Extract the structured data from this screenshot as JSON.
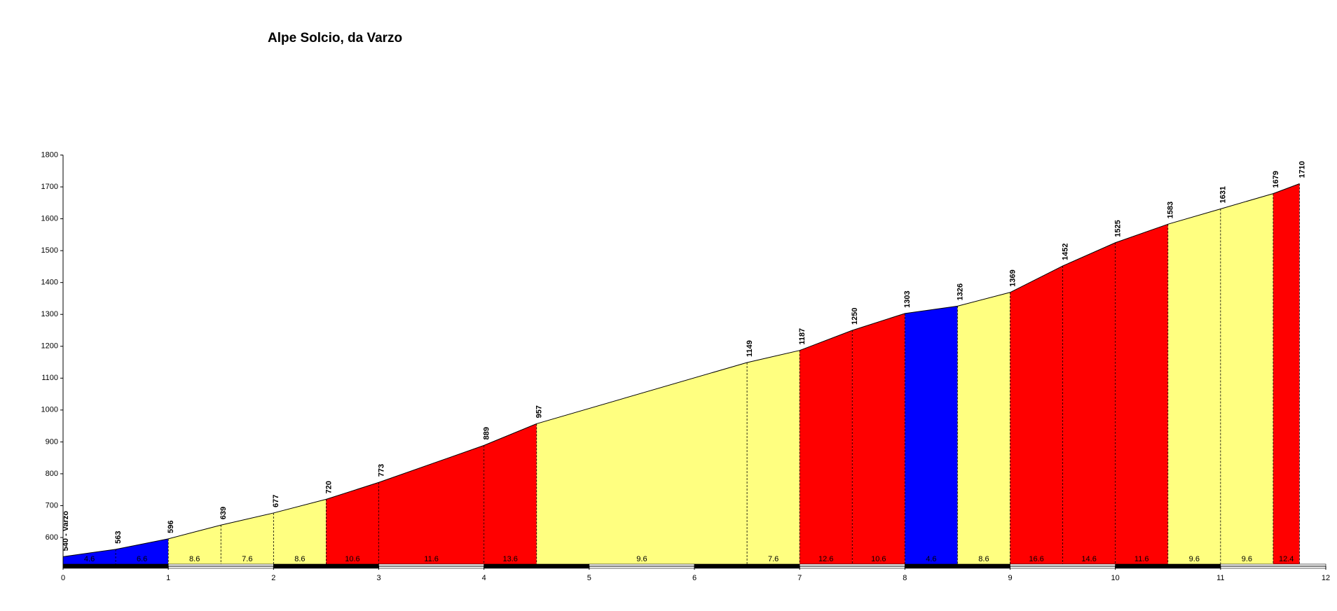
{
  "chart_data": {
    "type": "elevation-profile",
    "title": "Alpe Solcio, da Varzo",
    "x": [
      0,
      0.5,
      1,
      1.5,
      2,
      2.5,
      3,
      4,
      4.5,
      6.5,
      7,
      7.5,
      8,
      8.5,
      9,
      9.5,
      10,
      10.5,
      11,
      11.5,
      11.75
    ],
    "values": [
      540,
      563,
      596,
      639,
      677,
      720,
      773,
      889,
      957,
      1149,
      1187,
      1250,
      1303,
      1326,
      1369,
      1452,
      1525,
      1583,
      1631,
      1679,
      1710
    ],
    "value_labels": [
      "540 - Varzo",
      "563",
      "596",
      "639",
      "677",
      "720",
      "773",
      "889",
      "957",
      "1149",
      "1187",
      "1250",
      "1303",
      "1326",
      "1369",
      "1452",
      "1525",
      "1583",
      "1631",
      "1679",
      "1710"
    ],
    "segments": [
      {
        "grade": 4.6,
        "color": "#0000ff"
      },
      {
        "grade": 6.6,
        "color": "#0000ff"
      },
      {
        "grade": 8.6,
        "color": "#ffff80"
      },
      {
        "grade": 7.6,
        "color": "#ffff80"
      },
      {
        "grade": 8.6,
        "color": "#ffff80"
      },
      {
        "grade": 10.6,
        "color": "#ff0000"
      },
      {
        "grade": 11.6,
        "color": "#ff0000"
      },
      {
        "grade": 13.6,
        "color": "#ff0000"
      },
      {
        "grade": 9.6,
        "color": "#ffff80"
      },
      {
        "grade": 7.6,
        "color": "#ffff80"
      },
      {
        "grade": 12.6,
        "color": "#ff0000"
      },
      {
        "grade": 10.6,
        "color": "#ff0000"
      },
      {
        "grade": 4.6,
        "color": "#0000ff"
      },
      {
        "grade": 8.6,
        "color": "#ffff80"
      },
      {
        "grade": 16.6,
        "color": "#ff0000"
      },
      {
        "grade": 14.6,
        "color": "#ff0000"
      },
      {
        "grade": 11.6,
        "color": "#ff0000"
      },
      {
        "grade": 9.6,
        "color": "#ffff80"
      },
      {
        "grade": 9.6,
        "color": "#ffff80"
      },
      {
        "grade": 12.4,
        "color": "#ff0000"
      }
    ],
    "xlim": [
      0,
      12
    ],
    "xticks": [
      0,
      1,
      2,
      3,
      4,
      5,
      6,
      7,
      8,
      9,
      10,
      11,
      12
    ],
    "ylim": [
      510,
      1800
    ],
    "yticks": [
      600,
      700,
      800,
      900,
      1000,
      1100,
      1200,
      1300,
      1400,
      1500,
      1600,
      1700,
      1800
    ]
  }
}
